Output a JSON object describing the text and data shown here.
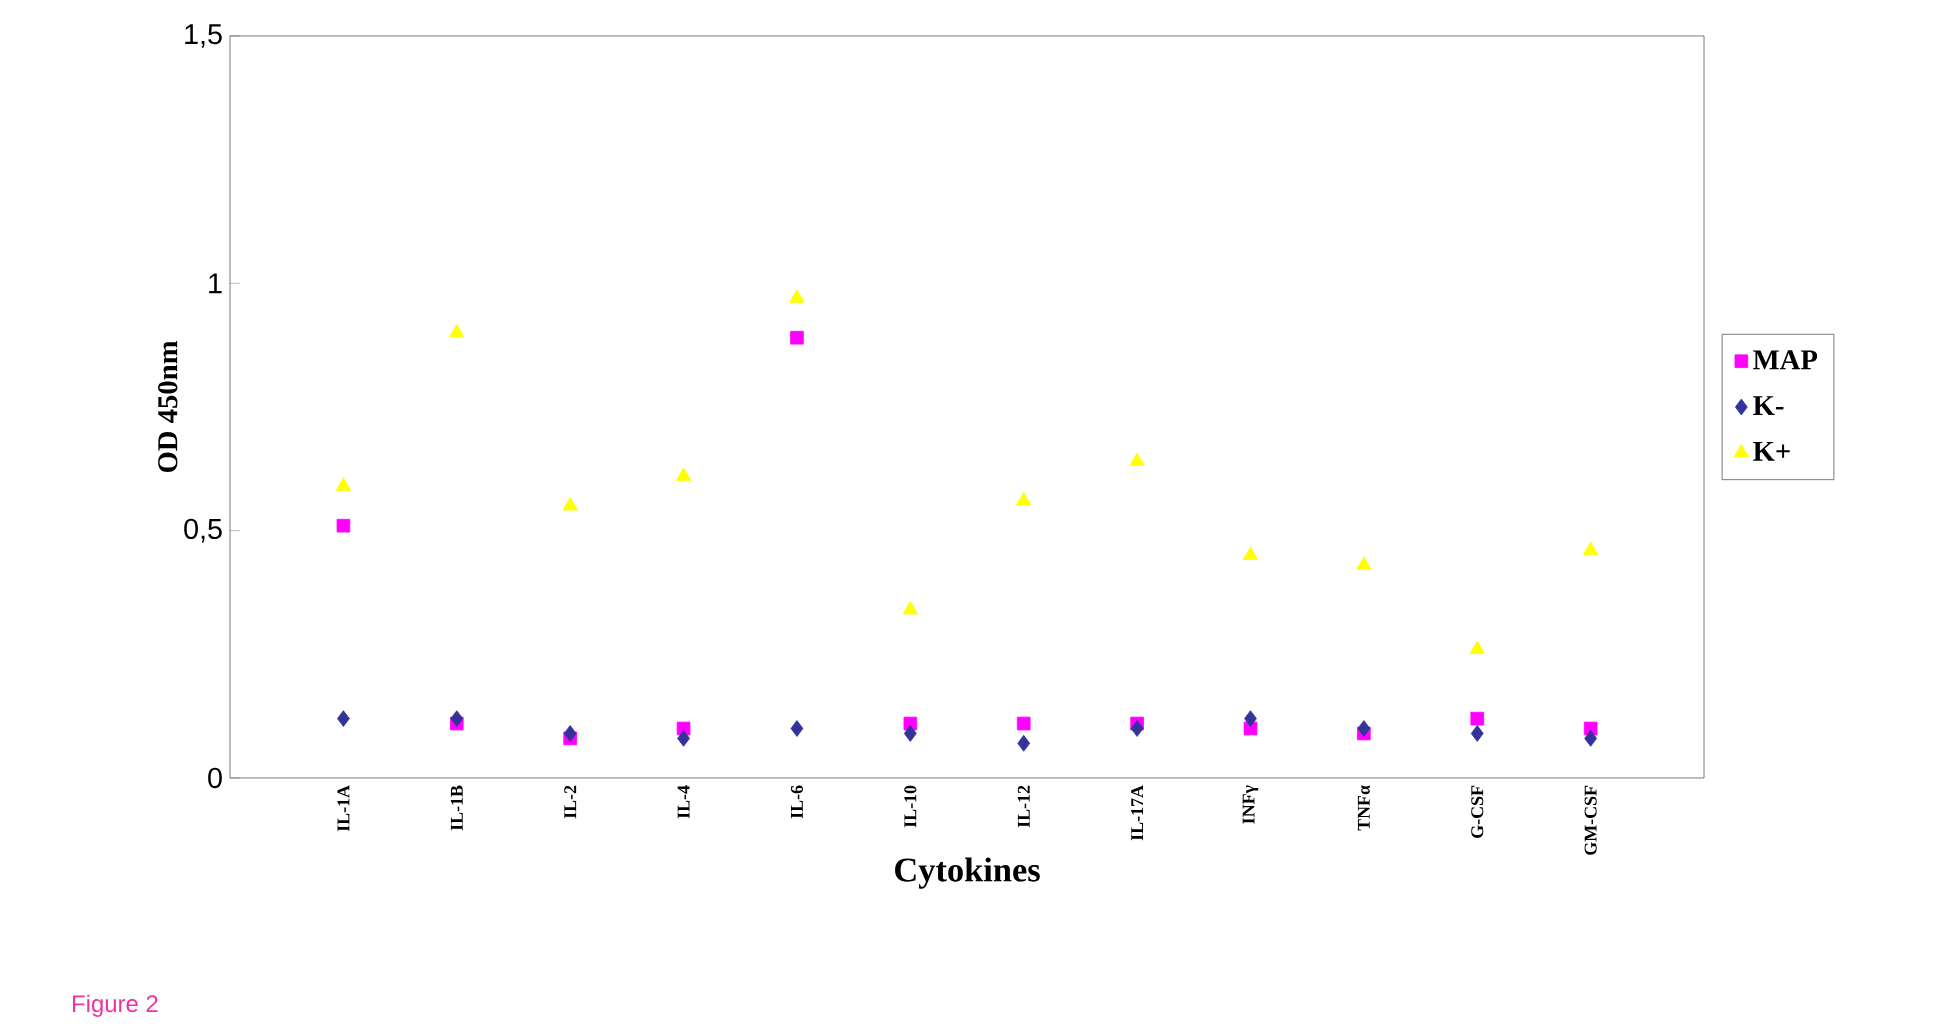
{
  "chart_data": {
    "type": "scatter",
    "xlabel": "Cytokines",
    "ylabel": "OD 450nm",
    "categories": [
      "IL-1A",
      "IL-1B",
      "IL-2",
      "IL-4",
      "IL-6",
      "IL-10",
      "IL-12",
      "IL-17A",
      "INFγ",
      "TNFα",
      "G-CSF",
      "GM-CSF"
    ],
    "series": [
      {
        "name": "MAP",
        "color": "#ff00ff",
        "marker": "square",
        "values": [
          0.51,
          0.11,
          0.08,
          0.1,
          0.89,
          0.11,
          0.11,
          0.11,
          0.1,
          0.09,
          0.12,
          0.1
        ]
      },
      {
        "name": "K-",
        "color": "#333399",
        "marker": "diamond",
        "values": [
          0.12,
          0.12,
          0.09,
          0.08,
          0.1,
          0.09,
          0.07,
          0.1,
          0.12,
          0.1,
          0.09,
          0.08
        ]
      },
      {
        "name": "K+",
        "color": "#ffff00",
        "marker": "triangle",
        "values": [
          0.59,
          0.9,
          0.55,
          0.61,
          0.97,
          0.34,
          0.56,
          0.64,
          0.45,
          0.43,
          0.26,
          0.46
        ]
      }
    ],
    "ylim": [
      0,
      1.5
    ],
    "yticks": [
      {
        "value": 0,
        "label": "0"
      },
      {
        "value": 0.5,
        "label": "0,5"
      },
      {
        "value": 1,
        "label": "1"
      },
      {
        "value": 1.5,
        "label": "1,5"
      }
    ],
    "grid": false,
    "legend": "right",
    "annotations": [
      "Figure 2"
    ]
  }
}
